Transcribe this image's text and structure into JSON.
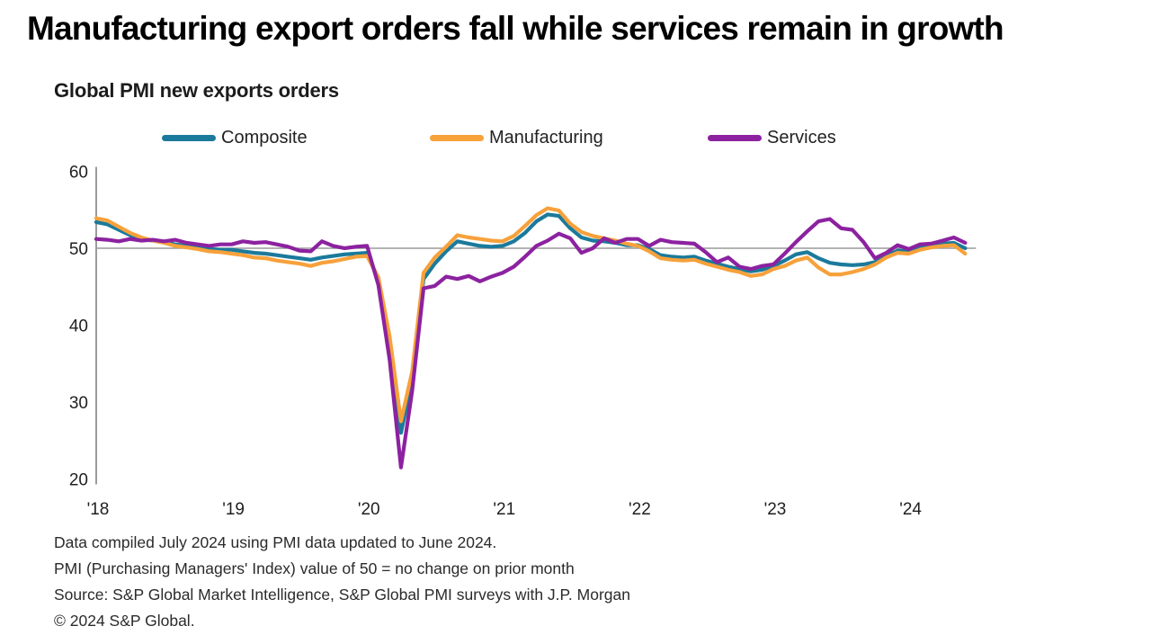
{
  "headline": "Manufacturing export orders fall while services remain in growth",
  "chart": {
    "title": "Global PMI new exports orders",
    "legend": [
      {
        "label": "Composite",
        "color": "#1b7a9b"
      },
      {
        "label": "Manufacturing",
        "color": "#f7a13b"
      },
      {
        "label": "Services",
        "color": "#8c22a0"
      }
    ],
    "footnotes": [
      "Data compiled July 2024 using PMI data updated to June 2024.",
      "PMI (Purchasing Managers' Index) value of 50 = no change on prior month",
      "Source: S&P Global Market Intelligence, S&P Global PMI surveys with J.P. Morgan",
      "© 2024 S&P Global."
    ],
    "axis_color": "#9b9b9b",
    "baseline_color": "#9a9a9a",
    "tick_text_color": "#1f1f1f"
  },
  "chart_data": {
    "type": "line",
    "title": "Global PMI new exports orders",
    "x_unit": "month",
    "x_start": "2018-01",
    "x_end": "2024-06",
    "x_tick_labels": [
      "'18",
      "'19",
      "'20",
      "'21",
      "'22",
      "'23",
      "'24"
    ],
    "x_tick_month_indices": [
      0,
      12,
      24,
      36,
      48,
      60,
      72
    ],
    "ylim": [
      20,
      60
    ],
    "yticks": [
      20,
      30,
      40,
      50,
      60
    ],
    "baseline": 50,
    "legend_position": "top",
    "grid": false,
    "series": [
      {
        "name": "Composite",
        "color": "#1b7a9b",
        "values": [
          53.4,
          53.1,
          52.4,
          51.7,
          51.2,
          51.0,
          50.8,
          50.5,
          50.3,
          50.1,
          49.9,
          49.8,
          49.8,
          49.6,
          49.4,
          49.3,
          49.1,
          48.9,
          48.7,
          48.5,
          48.8,
          49.0,
          49.2,
          49.3,
          49.4,
          45.9,
          37.5,
          26.0,
          33.0,
          46.0,
          48.0,
          49.6,
          50.9,
          50.6,
          50.3,
          50.2,
          50.3,
          50.9,
          52.0,
          53.5,
          54.4,
          54.2,
          52.6,
          51.4,
          51.0,
          50.9,
          50.7,
          50.4,
          50.4,
          49.9,
          49.1,
          48.9,
          48.8,
          48.9,
          48.4,
          48.0,
          47.6,
          47.3,
          47.0,
          47.2,
          47.7,
          48.4,
          49.2,
          49.5,
          48.7,
          48.1,
          47.9,
          47.8,
          47.9,
          48.2,
          49.0,
          49.7,
          49.6,
          50.2,
          50.3,
          50.6,
          50.7,
          50.0
        ]
      },
      {
        "name": "Manufacturing",
        "color": "#f7a13b",
        "values": [
          53.9,
          53.6,
          52.8,
          52.0,
          51.4,
          51.0,
          50.7,
          50.3,
          50.1,
          49.9,
          49.6,
          49.5,
          49.3,
          49.1,
          48.8,
          48.7,
          48.4,
          48.2,
          48.0,
          47.7,
          48.1,
          48.3,
          48.6,
          48.9,
          49.0,
          46.2,
          38.5,
          27.5,
          34.0,
          46.8,
          48.8,
          50.2,
          51.7,
          51.4,
          51.2,
          51.0,
          50.9,
          51.6,
          52.9,
          54.3,
          55.2,
          54.9,
          53.2,
          52.1,
          51.6,
          51.3,
          51.0,
          50.6,
          50.3,
          49.6,
          48.7,
          48.5,
          48.4,
          48.5,
          48.0,
          47.6,
          47.2,
          46.9,
          46.4,
          46.6,
          47.3,
          47.7,
          48.4,
          48.8,
          47.5,
          46.6,
          46.6,
          46.9,
          47.3,
          47.9,
          48.8,
          49.4,
          49.3,
          49.8,
          50.1,
          50.3,
          50.4,
          49.3
        ]
      },
      {
        "name": "Services",
        "color": "#8c22a0",
        "values": [
          51.2,
          51.1,
          50.9,
          51.2,
          51.0,
          51.1,
          50.9,
          51.1,
          50.7,
          50.5,
          50.3,
          50.5,
          50.5,
          50.9,
          50.7,
          50.8,
          50.5,
          50.2,
          49.7,
          49.6,
          50.9,
          50.3,
          50.0,
          50.2,
          50.3,
          45.2,
          35.5,
          21.5,
          31.5,
          44.8,
          45.1,
          46.3,
          46.0,
          46.4,
          45.7,
          46.3,
          46.8,
          47.6,
          48.9,
          50.3,
          51.0,
          51.9,
          51.3,
          49.4,
          50.0,
          51.3,
          50.7,
          51.2,
          51.2,
          50.3,
          51.1,
          50.8,
          50.7,
          50.6,
          49.5,
          48.2,
          48.8,
          47.6,
          47.3,
          47.7,
          47.9,
          49.3,
          50.8,
          52.2,
          53.5,
          53.8,
          52.6,
          52.4,
          50.8,
          48.7,
          49.4,
          50.4,
          49.9,
          50.5,
          50.6,
          51.0,
          51.4,
          50.7
        ]
      }
    ]
  }
}
